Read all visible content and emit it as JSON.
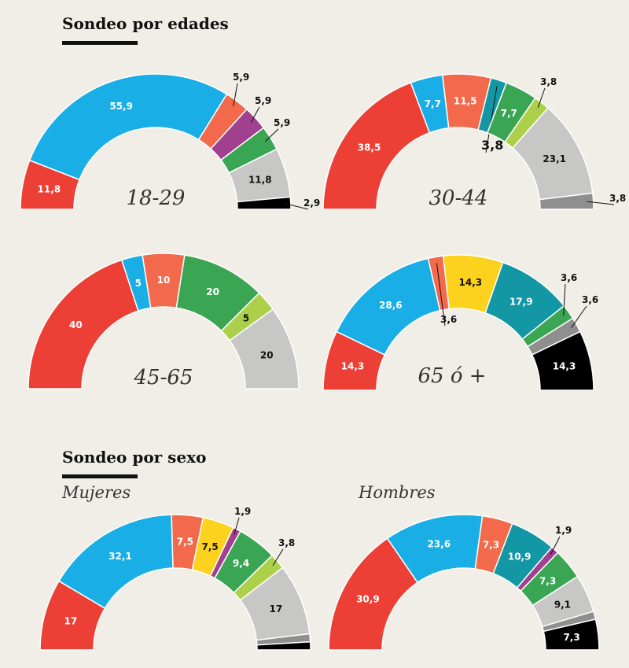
{
  "sections": {
    "age_title": "Sondeo por edades",
    "sex_title": "Sondeo por sexo"
  },
  "colors": {
    "red": "#ec4036",
    "blue": "#1aaee6",
    "orange": "#f26a4b",
    "purple": "#a1408f",
    "green": "#3aa553",
    "lime": "#acd04a",
    "lightgray": "#c7c7c6",
    "darkgray": "#8f8f8f",
    "teal": "#1497a5",
    "yellow": "#fcd21f",
    "black": "#000000"
  },
  "chart_data": [
    {
      "type": "pie",
      "shape": "semicircle-donut",
      "label": "18-29",
      "slices": [
        {
          "value": 11.8,
          "label": "11,8",
          "color": "red"
        },
        {
          "value": 55.9,
          "label": "55,9",
          "color": "blue"
        },
        {
          "value": 5.9,
          "label": "5,9",
          "color": "orange"
        },
        {
          "value": 5.9,
          "label": "5,9",
          "color": "purple"
        },
        {
          "value": 5.9,
          "label": "5,9",
          "color": "green"
        },
        {
          "value": 11.8,
          "label": "11,8",
          "color": "lightgray"
        },
        {
          "value": 2.9,
          "label": "2,9",
          "color": "black"
        }
      ]
    },
    {
      "type": "pie",
      "shape": "semicircle-donut",
      "label": "30-44",
      "slices": [
        {
          "value": 38.5,
          "label": "38,5",
          "color": "red"
        },
        {
          "value": 7.7,
          "label": "7,7",
          "color": "blue"
        },
        {
          "value": 11.5,
          "label": "11,5",
          "color": "orange"
        },
        {
          "value": 3.8,
          "label": "3,8",
          "color": "teal"
        },
        {
          "value": 7.7,
          "label": "7,7",
          "color": "green"
        },
        {
          "value": 3.8,
          "label": "3,8",
          "color": "lime"
        },
        {
          "value": 23.1,
          "label": "23,1",
          "color": "lightgray"
        },
        {
          "value": 3.8,
          "label": "3,8",
          "color": "darkgray"
        }
      ]
    },
    {
      "type": "pie",
      "shape": "semicircle-donut",
      "label": "45-65",
      "slices": [
        {
          "value": 40,
          "label": "40",
          "color": "red"
        },
        {
          "value": 5,
          "label": "5",
          "color": "blue"
        },
        {
          "value": 10,
          "label": "10",
          "color": "orange"
        },
        {
          "value": 20,
          "label": "20",
          "color": "green"
        },
        {
          "value": 5,
          "label": "5",
          "color": "lime"
        },
        {
          "value": 20,
          "label": "20",
          "color": "lightgray"
        }
      ]
    },
    {
      "type": "pie",
      "shape": "semicircle-donut",
      "label": "65 ó +",
      "slices": [
        {
          "value": 14.3,
          "label": "14,3",
          "color": "red"
        },
        {
          "value": 28.6,
          "label": "28,6",
          "color": "blue"
        },
        {
          "value": 3.6,
          "label": "3,6",
          "color": "orange"
        },
        {
          "value": 14.3,
          "label": "14,3",
          "color": "yellow"
        },
        {
          "value": 17.9,
          "label": "17,9",
          "color": "teal"
        },
        {
          "value": 3.6,
          "label": "3,6",
          "color": "green"
        },
        {
          "value": 3.6,
          "label": "3,6",
          "color": "darkgray"
        },
        {
          "value": 14.3,
          "label": "14,3",
          "color": "black"
        }
      ]
    },
    {
      "type": "pie",
      "shape": "semicircle-donut",
      "label": "Mujeres",
      "slices": [
        {
          "value": 17,
          "label": "17",
          "color": "red"
        },
        {
          "value": 32.1,
          "label": "32,1",
          "color": "blue"
        },
        {
          "value": 7.5,
          "label": "7,5",
          "color": "orange"
        },
        {
          "value": 7.5,
          "label": "7,5",
          "color": "yellow"
        },
        {
          "value": 1.9,
          "label": "1,9",
          "color": "purple"
        },
        {
          "value": 9.4,
          "label": "9,4",
          "color": "green"
        },
        {
          "value": 3.8,
          "label": "3,8",
          "color": "lime"
        },
        {
          "value": 17,
          "label": "17",
          "color": "lightgray"
        },
        {
          "value": 1.9,
          "label": "",
          "color": "darkgray"
        },
        {
          "value": 1.9,
          "label": "",
          "color": "black"
        }
      ]
    },
    {
      "type": "pie",
      "shape": "semicircle-donut",
      "label": "Hombres",
      "slices": [
        {
          "value": 30.9,
          "label": "30,9",
          "color": "red"
        },
        {
          "value": 23.6,
          "label": "23,6",
          "color": "blue"
        },
        {
          "value": 7.3,
          "label": "7,3",
          "color": "orange"
        },
        {
          "value": 10.9,
          "label": "10,9",
          "color": "teal"
        },
        {
          "value": 1.9,
          "label": "1,9",
          "color": "purple"
        },
        {
          "value": 7.3,
          "label": "7,3",
          "color": "green"
        },
        {
          "value": 9.1,
          "label": "9,1",
          "color": "lightgray"
        },
        {
          "value": 1.9,
          "label": "",
          "color": "darkgray"
        },
        {
          "value": 7.3,
          "label": "7,3",
          "color": "black"
        }
      ]
    }
  ]
}
